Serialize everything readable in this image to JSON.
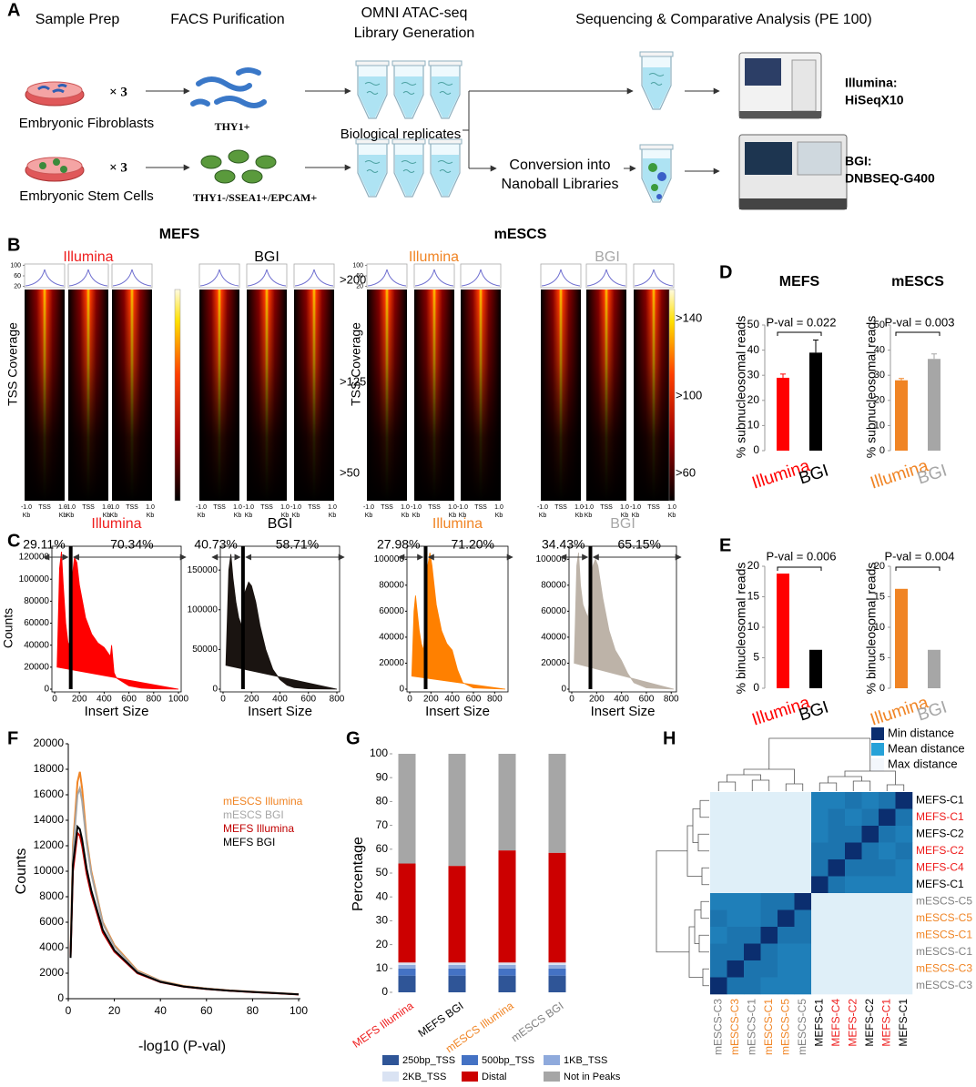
{
  "panel_labels": [
    "A",
    "B",
    "C",
    "D",
    "E",
    "F",
    "G",
    "H"
  ],
  "workflow": {
    "steps": [
      [
        "Sample Prep"
      ],
      [
        "FACS Purification"
      ],
      [
        "OMNI ATAC-seq",
        "Library Generation"
      ],
      [
        "Sequencing & Comparative Analysis (PE 100)"
      ]
    ],
    "multiplier": "× 3",
    "samples": [
      "Embryonic Fibroblasts",
      "Embryonic Stem Cells"
    ],
    "markers": [
      "THY1+",
      "THY1-/SSEA1+/EPCAM+"
    ],
    "replicates": "Biological replicates",
    "conversion": [
      "Conversion into",
      "Nanoball Libraries"
    ],
    "platforms": [
      [
        "Illumina:",
        "HiSeqX10"
      ],
      [
        "BGI:",
        "DNBSEQ-G400"
      ]
    ]
  },
  "tss_heatmaps": {
    "groups": [
      {
        "title": "MEFS",
        "platforms": [
          {
            "name": "Illumina",
            "color": "#ee1c1c"
          },
          {
            "name": "BGI",
            "color": "#000000"
          }
        ],
        "colorbar_labels": [
          ">200",
          ">125",
          ">50"
        ]
      },
      {
        "title": "mESCS",
        "platforms": [
          {
            "name": "Illumina",
            "color": "#f08424"
          },
          {
            "name": "BGI",
            "color": "#a6a6a6"
          }
        ],
        "colorbar_labels": [
          ">140",
          ">100",
          ">60"
        ]
      }
    ],
    "profile_ylim": [
      15,
      105
    ],
    "profile_yticks": [
      100,
      60,
      20
    ],
    "ylabel": "TSS  Coverage",
    "x_labels": [
      [
        "-1.0",
        "Kb"
      ],
      [
        "TSS"
      ],
      [
        "1.0",
        "Kb"
      ]
    ]
  },
  "insert_size": {
    "ylabel": "Counts",
    "xlabel": "Insert Size",
    "charts": [
      {
        "type": "area",
        "title": "Illumina",
        "title_color": "#ee1c1c",
        "color": "#ff0000",
        "left_label": "29.11%",
        "right_label": "70.34%",
        "threshold": 130,
        "xlim": [
          0,
          1000
        ],
        "xticks": [
          0,
          200,
          400,
          600,
          800,
          1000
        ],
        "ylim": [
          0,
          130000
        ],
        "yticks": [
          0,
          20000,
          40000,
          60000,
          80000,
          100000,
          120000
        ],
        "x": [
          20,
          40,
          55,
          70,
          90,
          110,
          125,
          140,
          160,
          180,
          200,
          250,
          300,
          350,
          400,
          450,
          460,
          480,
          500,
          600,
          700,
          800,
          1000
        ],
        "values": [
          20000,
          110000,
          125000,
          95000,
          60000,
          40000,
          45000,
          100000,
          120000,
          115000,
          95000,
          65000,
          50000,
          42000,
          38000,
          30000,
          40000,
          15000,
          10000,
          3000,
          1000,
          300,
          0
        ]
      },
      {
        "type": "area",
        "title": "BGI",
        "title_color": "#000000",
        "color": "#1a1411",
        "left_label": "40.73%",
        "right_label": "58.71%",
        "threshold": 140,
        "xlim": [
          0,
          800
        ],
        "xticks": [
          0,
          200,
          400,
          600,
          800
        ],
        "ylim": [
          0,
          180000
        ],
        "yticks": [
          0,
          50000,
          100000,
          150000
        ],
        "x": [
          20,
          40,
          55,
          70,
          90,
          110,
          130,
          150,
          180,
          200,
          230,
          260,
          300,
          350,
          400,
          450,
          500,
          600,
          800
        ],
        "values": [
          30000,
          150000,
          170000,
          140000,
          110000,
          90000,
          80000,
          120000,
          135000,
          130000,
          110000,
          80000,
          50000,
          25000,
          12000,
          5000,
          2000,
          500,
          0
        ]
      },
      {
        "type": "area",
        "title": "Illumina",
        "title_color": "#f08424",
        "color": "#ff8000",
        "left_label": "27.98%",
        "right_label": "71.20%",
        "threshold": 150,
        "xlim": [
          0,
          900
        ],
        "xticks": [
          0,
          200,
          400,
          600,
          800
        ],
        "ylim": [
          0,
          110000
        ],
        "yticks": [
          0,
          20000,
          40000,
          60000,
          80000,
          100000
        ],
        "x": [
          20,
          40,
          55,
          70,
          90,
          110,
          130,
          150,
          170,
          190,
          210,
          250,
          300,
          350,
          400,
          450,
          500,
          600,
          900
        ],
        "values": [
          10000,
          60000,
          72000,
          60000,
          45000,
          35000,
          30000,
          60000,
          95000,
          105000,
          95000,
          65000,
          45000,
          35000,
          30000,
          15000,
          5000,
          1000,
          0
        ]
      },
      {
        "type": "area",
        "title": "BGI",
        "title_color": "#a6a6a6",
        "color": "#bdb3a8",
        "left_label": "34.43%",
        "right_label": "65.15%",
        "threshold": 150,
        "xlim": [
          0,
          820
        ],
        "xticks": [
          0,
          200,
          400,
          600,
          800
        ],
        "ylim": [
          0,
          110000
        ],
        "yticks": [
          0,
          20000,
          40000,
          60000,
          80000,
          100000
        ],
        "x": [
          20,
          40,
          55,
          70,
          90,
          110,
          130,
          150,
          170,
          190,
          210,
          250,
          300,
          350,
          400,
          450,
          500,
          600,
          820
        ],
        "values": [
          20000,
          95000,
          105000,
          80000,
          65000,
          60000,
          55000,
          80000,
          95000,
          100000,
          95000,
          70000,
          45000,
          30000,
          22000,
          12000,
          5000,
          1000,
          0
        ]
      }
    ]
  },
  "subnucleosomal": {
    "ylabel": "% subnucleosomal reads",
    "charts": [
      {
        "type": "bar",
        "title": "MEFS",
        "pval": "P-val = 0.022",
        "categories": [
          "Illumina",
          "BGI"
        ],
        "values": [
          29,
          39
        ],
        "errors": [
          1.5,
          5
        ],
        "colors": [
          "#ff0000",
          "#000000"
        ],
        "ylim": [
          0,
          50
        ],
        "yticks": [
          0,
          10,
          20,
          30,
          40,
          50
        ]
      },
      {
        "type": "bar",
        "title": "mESCS",
        "pval": "P-val = 0.003",
        "categories": [
          "Illumina",
          "BGI"
        ],
        "values": [
          28,
          36.5
        ],
        "errors": [
          0.7,
          2
        ],
        "colors": [
          "#f08424",
          "#a6a6a6"
        ],
        "ylim": [
          0,
          50
        ],
        "yticks": [
          0,
          10,
          20,
          30,
          40,
          50
        ]
      }
    ]
  },
  "binucleosomal": {
    "ylabel": "% binucleosomal reads",
    "charts": [
      {
        "type": "bar",
        "pval": "P-val = 0.006",
        "categories": [
          "Illumina",
          "BGI"
        ],
        "values": [
          18.8,
          6.3
        ],
        "colors": [
          "#ff0000",
          "#000000"
        ],
        "ylim": [
          0,
          20
        ],
        "yticks": [
          0,
          5,
          10,
          15,
          20
        ]
      },
      {
        "type": "bar",
        "pval": "P-val = 0.004",
        "categories": [
          "Illumina",
          "BGI"
        ],
        "values": [
          16.3,
          6.3
        ],
        "colors": [
          "#f08424",
          "#a6a6a6"
        ],
        "ylim": [
          0,
          20
        ],
        "yticks": [
          0,
          5,
          10,
          15,
          20
        ]
      }
    ]
  },
  "peak_pvalues": {
    "type": "line",
    "xlabel": "-log10 (P-val)",
    "ylabel": "Counts",
    "xlim": [
      0,
      100
    ],
    "xticks": [
      0,
      20,
      40,
      60,
      80,
      100
    ],
    "ylim": [
      0,
      20000
    ],
    "yticks": [
      0,
      2000,
      4000,
      6000,
      8000,
      10000,
      12000,
      14000,
      16000,
      18000,
      20000
    ],
    "x": [
      1,
      2,
      4,
      5,
      6,
      8,
      10,
      15,
      20,
      30,
      40,
      50,
      60,
      70,
      80,
      90,
      100
    ],
    "series": [
      {
        "name": "mESCS Illumina",
        "color": "#f08424",
        "values": [
          3500,
          12000,
          17000,
          17800,
          16500,
          12500,
          10000,
          6000,
          4200,
          2200,
          1400,
          1000,
          800,
          650,
          550,
          450,
          350
        ]
      },
      {
        "name": "mESCS BGI",
        "color": "#a6a6a6",
        "values": [
          3400,
          11500,
          16000,
          16500,
          15500,
          12200,
          9800,
          5900,
          4100,
          2150,
          1380,
          980,
          790,
          640,
          540,
          440,
          340
        ]
      },
      {
        "name": "MEFS Illumina",
        "color": "#c00000",
        "values": [
          3300,
          10000,
          13000,
          12800,
          12000,
          9800,
          8200,
          5200,
          3700,
          2000,
          1300,
          950,
          760,
          620,
          520,
          430,
          330
        ]
      },
      {
        "name": "MEFS BGI",
        "color": "#000000",
        "values": [
          3200,
          10500,
          13500,
          13300,
          12500,
          10200,
          8500,
          5400,
          3800,
          2050,
          1320,
          960,
          770,
          630,
          530,
          435,
          335
        ]
      }
    ]
  },
  "peak_annotation": {
    "type": "stacked_bar",
    "ylabel": "Percentage",
    "ylim": [
      0,
      100
    ],
    "yticks": [
      0,
      10,
      20,
      30,
      40,
      50,
      60,
      70,
      80,
      90,
      100
    ],
    "categories": [
      "MEFS Illumina",
      "MEFS BGI",
      "mESCS Illumina",
      "mESCS BGI"
    ],
    "label_colors": [
      "#ee1c1c",
      "#000000",
      "#f08424",
      "#808080"
    ],
    "series": [
      {
        "name": "250bp_TSS",
        "color": "#2f5597",
        "values": [
          7,
          7,
          7,
          7
        ]
      },
      {
        "name": "500bp_TSS",
        "color": "#4472c4",
        "values": [
          3,
          3,
          3,
          3
        ]
      },
      {
        "name": "1KB_TSS",
        "color": "#8faadc",
        "values": [
          1.5,
          1.5,
          1.5,
          1.5
        ]
      },
      {
        "name": "2KB_TSS",
        "color": "#dae3f3",
        "values": [
          1,
          1,
          1,
          1
        ]
      },
      {
        "name": "Distal",
        "color": "#cc0000",
        "values": [
          41.5,
          40.5,
          47,
          46
        ]
      },
      {
        "name": "Not in Peaks",
        "color": "#a6a6a6",
        "values": [
          46,
          47,
          40.5,
          41.5
        ]
      }
    ]
  },
  "distance_heatmap": {
    "type": "heatmap",
    "zlim": [
      0,
      1
    ],
    "legend": [
      {
        "label": "Min distance",
        "color": "#0b2e6f"
      },
      {
        "label": "Mean distance",
        "color": "#27a2d8"
      },
      {
        "label": "Max distance",
        "color": "#f3f7fc"
      }
    ],
    "rows": [
      {
        "label": "MEFS-C1",
        "color": "#000000"
      },
      {
        "label": "MEFS-C1",
        "color": "#ee1c1c"
      },
      {
        "label": "MEFS-C2",
        "color": "#000000"
      },
      {
        "label": "MEFS-C2",
        "color": "#ee1c1c"
      },
      {
        "label": "MEFS-C4",
        "color": "#ee1c1c"
      },
      {
        "label": "MEFS-C1",
        "color": "#000000"
      },
      {
        "label": "mESCS-C5",
        "color": "#808080"
      },
      {
        "label": "mESCS-C5",
        "color": "#f08424"
      },
      {
        "label": "mESCS-C1",
        "color": "#f08424"
      },
      {
        "label": "mESCS-C1",
        "color": "#808080"
      },
      {
        "label": "mESCS-C3",
        "color": "#f08424"
      },
      {
        "label": "mESCS-C3",
        "color": "#808080"
      }
    ],
    "columns": [
      {
        "label": "mESCS-C3",
        "color": "#808080"
      },
      {
        "label": "mESCS-C3",
        "color": "#f08424"
      },
      {
        "label": "mESCS-C1",
        "color": "#808080"
      },
      {
        "label": "mESCS-C1",
        "color": "#f08424"
      },
      {
        "label": "mESCS-C5",
        "color": "#f08424"
      },
      {
        "label": "mESCS-C5",
        "color": "#808080"
      },
      {
        "label": "MEFS-C1",
        "color": "#000000"
      },
      {
        "label": "MEFS-C4",
        "color": "#ee1c1c"
      },
      {
        "label": "MEFS-C2",
        "color": "#ee1c1c"
      },
      {
        "label": "MEFS-C2",
        "color": "#000000"
      },
      {
        "label": "MEFS-C1",
        "color": "#ee1c1c"
      },
      {
        "label": "MEFS-C1",
        "color": "#000000"
      }
    ],
    "values": [
      [
        0.95,
        0.95,
        0.95,
        0.95,
        0.95,
        0.95,
        0.35,
        0.35,
        0.3,
        0.35,
        0.3,
        0
      ],
      [
        0.95,
        0.95,
        0.95,
        0.95,
        0.95,
        0.95,
        0.35,
        0.3,
        0.35,
        0.3,
        0,
        0.3
      ],
      [
        0.95,
        0.95,
        0.95,
        0.95,
        0.95,
        0.95,
        0.35,
        0.3,
        0.3,
        0,
        0.3,
        0.35
      ],
      [
        0.95,
        0.95,
        0.95,
        0.95,
        0.95,
        0.95,
        0.3,
        0.3,
        0,
        0.3,
        0.35,
        0.3
      ],
      [
        0.95,
        0.95,
        0.95,
        0.95,
        0.95,
        0.95,
        0.3,
        0,
        0.3,
        0.3,
        0.3,
        0.35
      ],
      [
        0.95,
        0.95,
        0.95,
        0.95,
        0.95,
        0.95,
        0,
        0.3,
        0.35,
        0.35,
        0.35,
        0.35
      ],
      [
        0.35,
        0.35,
        0.35,
        0.3,
        0.3,
        0,
        0.95,
        0.95,
        0.95,
        0.95,
        0.95,
        0.95
      ],
      [
        0.3,
        0.35,
        0.35,
        0.3,
        0,
        0.3,
        0.95,
        0.95,
        0.95,
        0.95,
        0.95,
        0.95
      ],
      [
        0.35,
        0.3,
        0.3,
        0,
        0.3,
        0.3,
        0.95,
        0.95,
        0.95,
        0.95,
        0.95,
        0.95
      ],
      [
        0.3,
        0.3,
        0,
        0.3,
        0.35,
        0.35,
        0.95,
        0.95,
        0.95,
        0.95,
        0.95,
        0.95
      ],
      [
        0.3,
        0,
        0.3,
        0.3,
        0.35,
        0.35,
        0.95,
        0.95,
        0.95,
        0.95,
        0.95,
        0.95
      ],
      [
        0,
        0.3,
        0.3,
        0.35,
        0.35,
        0.35,
        0.95,
        0.95,
        0.95,
        0.95,
        0.95,
        0.95
      ]
    ]
  }
}
